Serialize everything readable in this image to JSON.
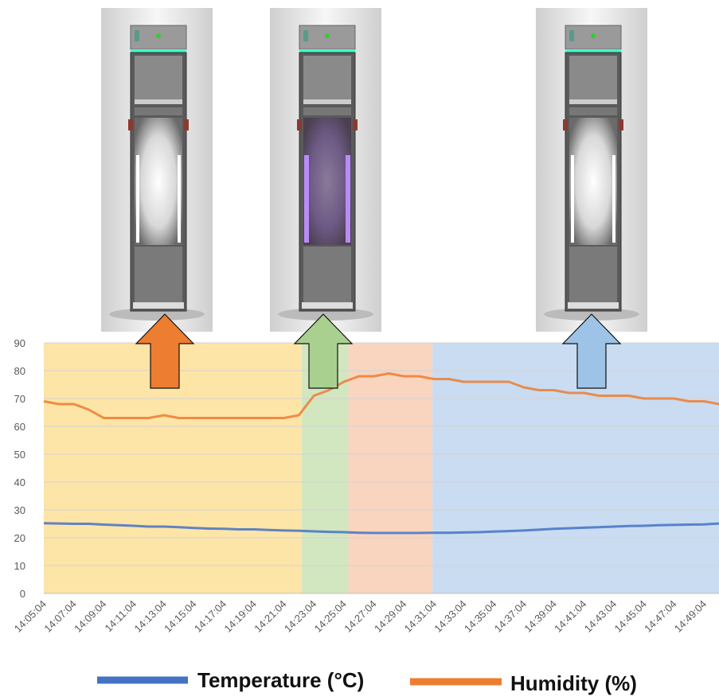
{
  "chart_data": {
    "type": "line",
    "categories": [
      "14:05:04",
      null,
      "14:07:04",
      null,
      "14:09:04",
      null,
      "14:11:04",
      null,
      "14:13:04",
      null,
      "14:15:04",
      null,
      "14:17:04",
      null,
      "14:19:04",
      null,
      "14:21:04",
      null,
      "14:23:04",
      null,
      "14:25:04",
      null,
      "14:27:04",
      null,
      "14:29:04",
      null,
      "14:31:04",
      null,
      "14:33:04",
      null,
      "14:35:04",
      null,
      "14:37:04",
      null,
      "14:39:04",
      null,
      "14:41:04",
      null,
      "14:43:04",
      null,
      "14:45:04",
      null,
      "14:47:04",
      null,
      "14:49:04",
      null
    ],
    "series": [
      {
        "name": "Temperature (°C)",
        "color": "#4472c4",
        "values": [
          25.2,
          25.1,
          25,
          25,
          24.7,
          24.5,
          24.3,
          24,
          24,
          23.8,
          23.5,
          23.3,
          23.2,
          23,
          23,
          22.8,
          22.6,
          22.5,
          22.3,
          22.1,
          22,
          21.8,
          21.7,
          21.7,
          21.7,
          21.7,
          21.8,
          21.8,
          21.9,
          22,
          22.2,
          22.4,
          22.6,
          22.9,
          23.2,
          23.4,
          23.6,
          23.8,
          24,
          24.2,
          24.3,
          24.5,
          24.6,
          24.7,
          24.8,
          25.1
        ]
      },
      {
        "name": "Humidity (%)",
        "color": "#ed7d31",
        "values": [
          69,
          68,
          68,
          66,
          63,
          63,
          63,
          63,
          64,
          63,
          63,
          63,
          63,
          63,
          63,
          63,
          63,
          64,
          71,
          73,
          76,
          78,
          78,
          79,
          78,
          78,
          77,
          77,
          76,
          76,
          76,
          76,
          74,
          73,
          73,
          72,
          72,
          71,
          71,
          71,
          70,
          70,
          70,
          69,
          69,
          68
        ]
      }
    ],
    "bands": [
      {
        "from": 0,
        "to": 17.2,
        "color": "#fde5a8"
      },
      {
        "from": 17.2,
        "to": 20.3,
        "color": "#d2e6c0"
      },
      {
        "from": 20.3,
        "to": 25.9,
        "color": "#f9d4be"
      },
      {
        "from": 25.9,
        "to": 45,
        "color": "#c9dcf1"
      }
    ],
    "ylim": [
      0,
      90
    ],
    "yticks": [
      0,
      10,
      20,
      30,
      40,
      50,
      60,
      70,
      80,
      90
    ],
    "grid": true
  }
}
